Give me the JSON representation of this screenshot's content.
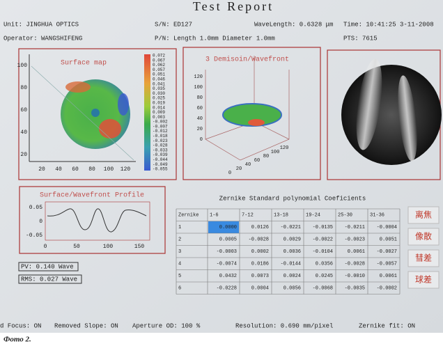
{
  "header": {
    "title": "Test Report",
    "unit": "Unit: JINGHUA OPTICS",
    "sn": "S/N: ED127",
    "wavelength": "WaveLength: 0.6328 μm",
    "time": "Time: 10:41:25 3-11-2008",
    "operator": "Operator: WANGSHIFENG",
    "pn": "P/N: Length 1.0mm Diameter 1.0mm",
    "pts": "PTS: 7615"
  },
  "surface_map": {
    "title": "Surface map",
    "y_ticks": [
      "100",
      "80",
      "60",
      "40",
      "20"
    ],
    "x_ticks": [
      "20",
      "40",
      "60",
      "80",
      "100",
      "120"
    ],
    "colorbar_labels": [
      "0.072",
      "0.067",
      "0.062",
      "0.057",
      "0.051",
      "0.046",
      "0.041",
      "0.035",
      "0.030",
      "0.025",
      "0.019",
      "0.014",
      "0.009",
      "0.003",
      "-0.002",
      "-0.007",
      "-0.012",
      "-0.018",
      "-0.023",
      "-0.028",
      "-0.033",
      "-0.039",
      "-0.044",
      "-0.049",
      "-0.055"
    ]
  },
  "wavefront_3d": {
    "title": "3 Demisoin/Wavefront",
    "ticks_left": [
      "120",
      "100",
      "80",
      "60",
      "40",
      "20",
      "0"
    ],
    "ticks_bottom": [
      "0",
      "20",
      "40",
      "60",
      "80",
      "100",
      "120"
    ]
  },
  "profile": {
    "title": "Surface/Wavefront Profile",
    "y_ticks": [
      "0.05",
      "0",
      "-0.05"
    ],
    "x_ticks": [
      "0",
      "50",
      "100",
      "150"
    ]
  },
  "stats": {
    "pv": "PV: 0.140 Wave",
    "rms": "RMS: 0.027 Wave"
  },
  "zernike": {
    "title": "Zernike Standard polynomial Coeficients",
    "header": [
      "Zernike",
      "1-6",
      "7-12",
      "13-18",
      "19-24",
      "25-30",
      "31-36"
    ],
    "rows": [
      [
        "1",
        "0.0000",
        "0.0126",
        "-0.0221",
        "-0.0135",
        "-0.0211",
        "-0.0004"
      ],
      [
        "2",
        "0.0005",
        "-0.0028",
        "0.0029",
        "-0.0022",
        "-0.0023",
        "0.0051"
      ],
      [
        "3",
        "-0.0003",
        "0.0002",
        "0.0036",
        "-0.0104",
        "0.0061",
        "-0.0027"
      ],
      [
        "4",
        "-0.0074",
        "0.0186",
        "-0.0144",
        "0.0356",
        "-0.0028",
        "-0.0057"
      ],
      [
        "5",
        "0.0432",
        "0.0073",
        "0.0024",
        "0.0245",
        "-0.0010",
        "0.0061"
      ],
      [
        "6",
        "-0.0228",
        "0.0004",
        "0.0056",
        "-0.0068",
        "-0.0035",
        "-0.0002"
      ]
    ]
  },
  "buttons": [
    "离焦",
    "像散",
    "彗差",
    "球差"
  ],
  "footer": [
    "d Focus: ON",
    "Removed Slope: ON",
    "Aperture OD: 100 %",
    "Resolution: 0.690 mm/pixel",
    "Zernike fit: ON"
  ],
  "caption": "Фото 2."
}
